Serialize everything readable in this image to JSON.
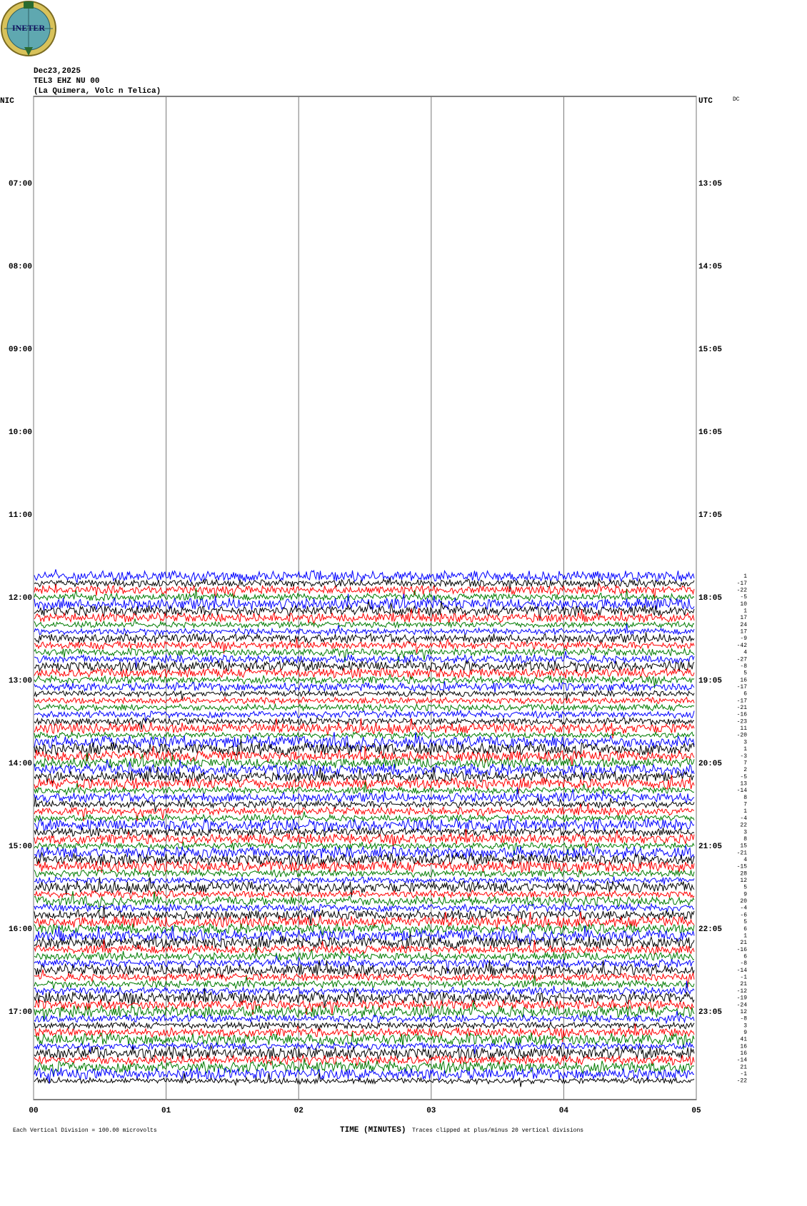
{
  "header": {
    "logo": "INETER",
    "date": "Dec23,2025",
    "station": "TEL3 EHZ NU 00",
    "location": "(La Quimera, Volc n Telica)"
  },
  "chart_data": {
    "type": "helicorder",
    "left_axis_title": "NIC",
    "right_axis_title": "UTC",
    "corner_label": "DC",
    "left_labels": [
      "07:00",
      "08:00",
      "09:00",
      "10:00",
      "11:00",
      "12:00",
      "13:00",
      "14:00",
      "15:00",
      "16:00",
      "17:00"
    ],
    "right_labels": [
      "13:05",
      "14:05",
      "15:05",
      "16:05",
      "17:05",
      "18:05",
      "19:05",
      "20:05",
      "21:05",
      "22:05",
      "23:05"
    ],
    "xlabel": "TIME (MINUTES)",
    "xlim": [
      0,
      5
    ],
    "xticks": [
      {
        "value": 0,
        "label": "00"
      },
      {
        "value": 1,
        "label": "01"
      },
      {
        "value": 2,
        "label": "02"
      },
      {
        "value": 3,
        "label": "03"
      },
      {
        "value": 4,
        "label": "04"
      },
      {
        "value": 5,
        "label": "05"
      }
    ],
    "scale_note": "Each Vertical Division =  100.00 microvolts",
    "clip_note": "Traces clipped at plus/minus 20 vertical divisions",
    "trace_offsets": [
      1,
      -17,
      -22,
      -5,
      10,
      1,
      17,
      24,
      17,
      -9,
      -42,
      4,
      -27,
      -8,
      5,
      16,
      -17,
      6,
      -17,
      -21,
      -16,
      -23,
      11,
      -20,
      3,
      1,
      -3,
      7,
      2,
      -5,
      13,
      -14,
      8,
      7,
      1,
      -4,
      22,
      3,
      8,
      15,
      -21,
      4,
      -15,
      28,
      12,
      5,
      9,
      20,
      -4,
      -6,
      5,
      6,
      1,
      21,
      -16,
      6,
      -8,
      -14,
      -1,
      21,
      -12,
      -19,
      -24,
      12,
      -8,
      3,
      9,
      41,
      16,
      16,
      -14,
      21,
      -1,
      -22
    ],
    "trace_colors": [
      "#0000ff",
      "#000000",
      "#ff0000",
      "#007a00"
    ]
  }
}
